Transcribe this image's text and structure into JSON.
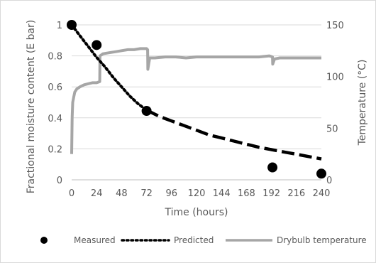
{
  "chart_data": {
    "type": "line",
    "title": "",
    "xlabel": "Time (hours)",
    "ylabel": "Fractional moisture content (E bar)",
    "y2label": "Temperature (°C)",
    "xlim": [
      0,
      240
    ],
    "ylim": [
      0,
      1
    ],
    "y2lim": [
      0,
      150
    ],
    "xticks": [
      0,
      24,
      48,
      72,
      96,
      120,
      144,
      168,
      192,
      216,
      240
    ],
    "yticks": [
      0,
      0.2,
      0.4,
      0.6,
      0.8,
      1
    ],
    "y2ticks": [
      0,
      50,
      100,
      150
    ],
    "grid": "horizontal",
    "legend_position": "bottom",
    "series": [
      {
        "name": "Measured",
        "style": "markers",
        "axis": "left",
        "color": "#000000",
        "x": [
          0,
          24,
          72,
          193,
          240
        ],
        "y": [
          1.0,
          0.87,
          0.445,
          0.08,
          0.04
        ]
      },
      {
        "name": "Predicted",
        "style": "dotted-then-dashed",
        "axis": "left",
        "color": "#000000",
        "x": [
          0,
          8,
          16,
          24,
          32,
          40,
          48,
          56,
          64,
          72,
          84,
          96,
          108,
          120,
          132,
          144,
          156,
          168,
          180,
          192,
          204,
          216,
          228,
          240
        ],
        "y": [
          1.0,
          0.93,
          0.86,
          0.79,
          0.73,
          0.66,
          0.6,
          0.54,
          0.49,
          0.45,
          0.41,
          0.38,
          0.35,
          0.32,
          0.29,
          0.27,
          0.25,
          0.23,
          0.21,
          0.195,
          0.18,
          0.165,
          0.15,
          0.135
        ]
      },
      {
        "name": "Drybulb temperature",
        "style": "solid",
        "axis": "right",
        "color": "#a6a6a6",
        "x": [
          0,
          0.5,
          1,
          2,
          3,
          5,
          8,
          12,
          16,
          20,
          24,
          27,
          27.2,
          30,
          36,
          42,
          48,
          54,
          60,
          66,
          72,
          73,
          73.2,
          75,
          80,
          90,
          100,
          110,
          120,
          130,
          140,
          150,
          160,
          170,
          180,
          190,
          193,
          193.2,
          195,
          200,
          210,
          220,
          230,
          240
        ],
        "y": [
          25,
          60,
          75,
          80,
          85,
          88,
          90,
          92,
          93,
          94,
          94,
          95,
          120,
          122,
          123,
          124,
          125,
          126,
          126,
          127,
          127,
          126,
          107,
          118,
          118,
          119,
          119,
          118,
          119,
          119,
          119,
          119,
          119,
          119,
          119,
          120,
          119,
          112,
          117,
          118,
          118,
          118,
          118,
          118
        ]
      }
    ]
  }
}
